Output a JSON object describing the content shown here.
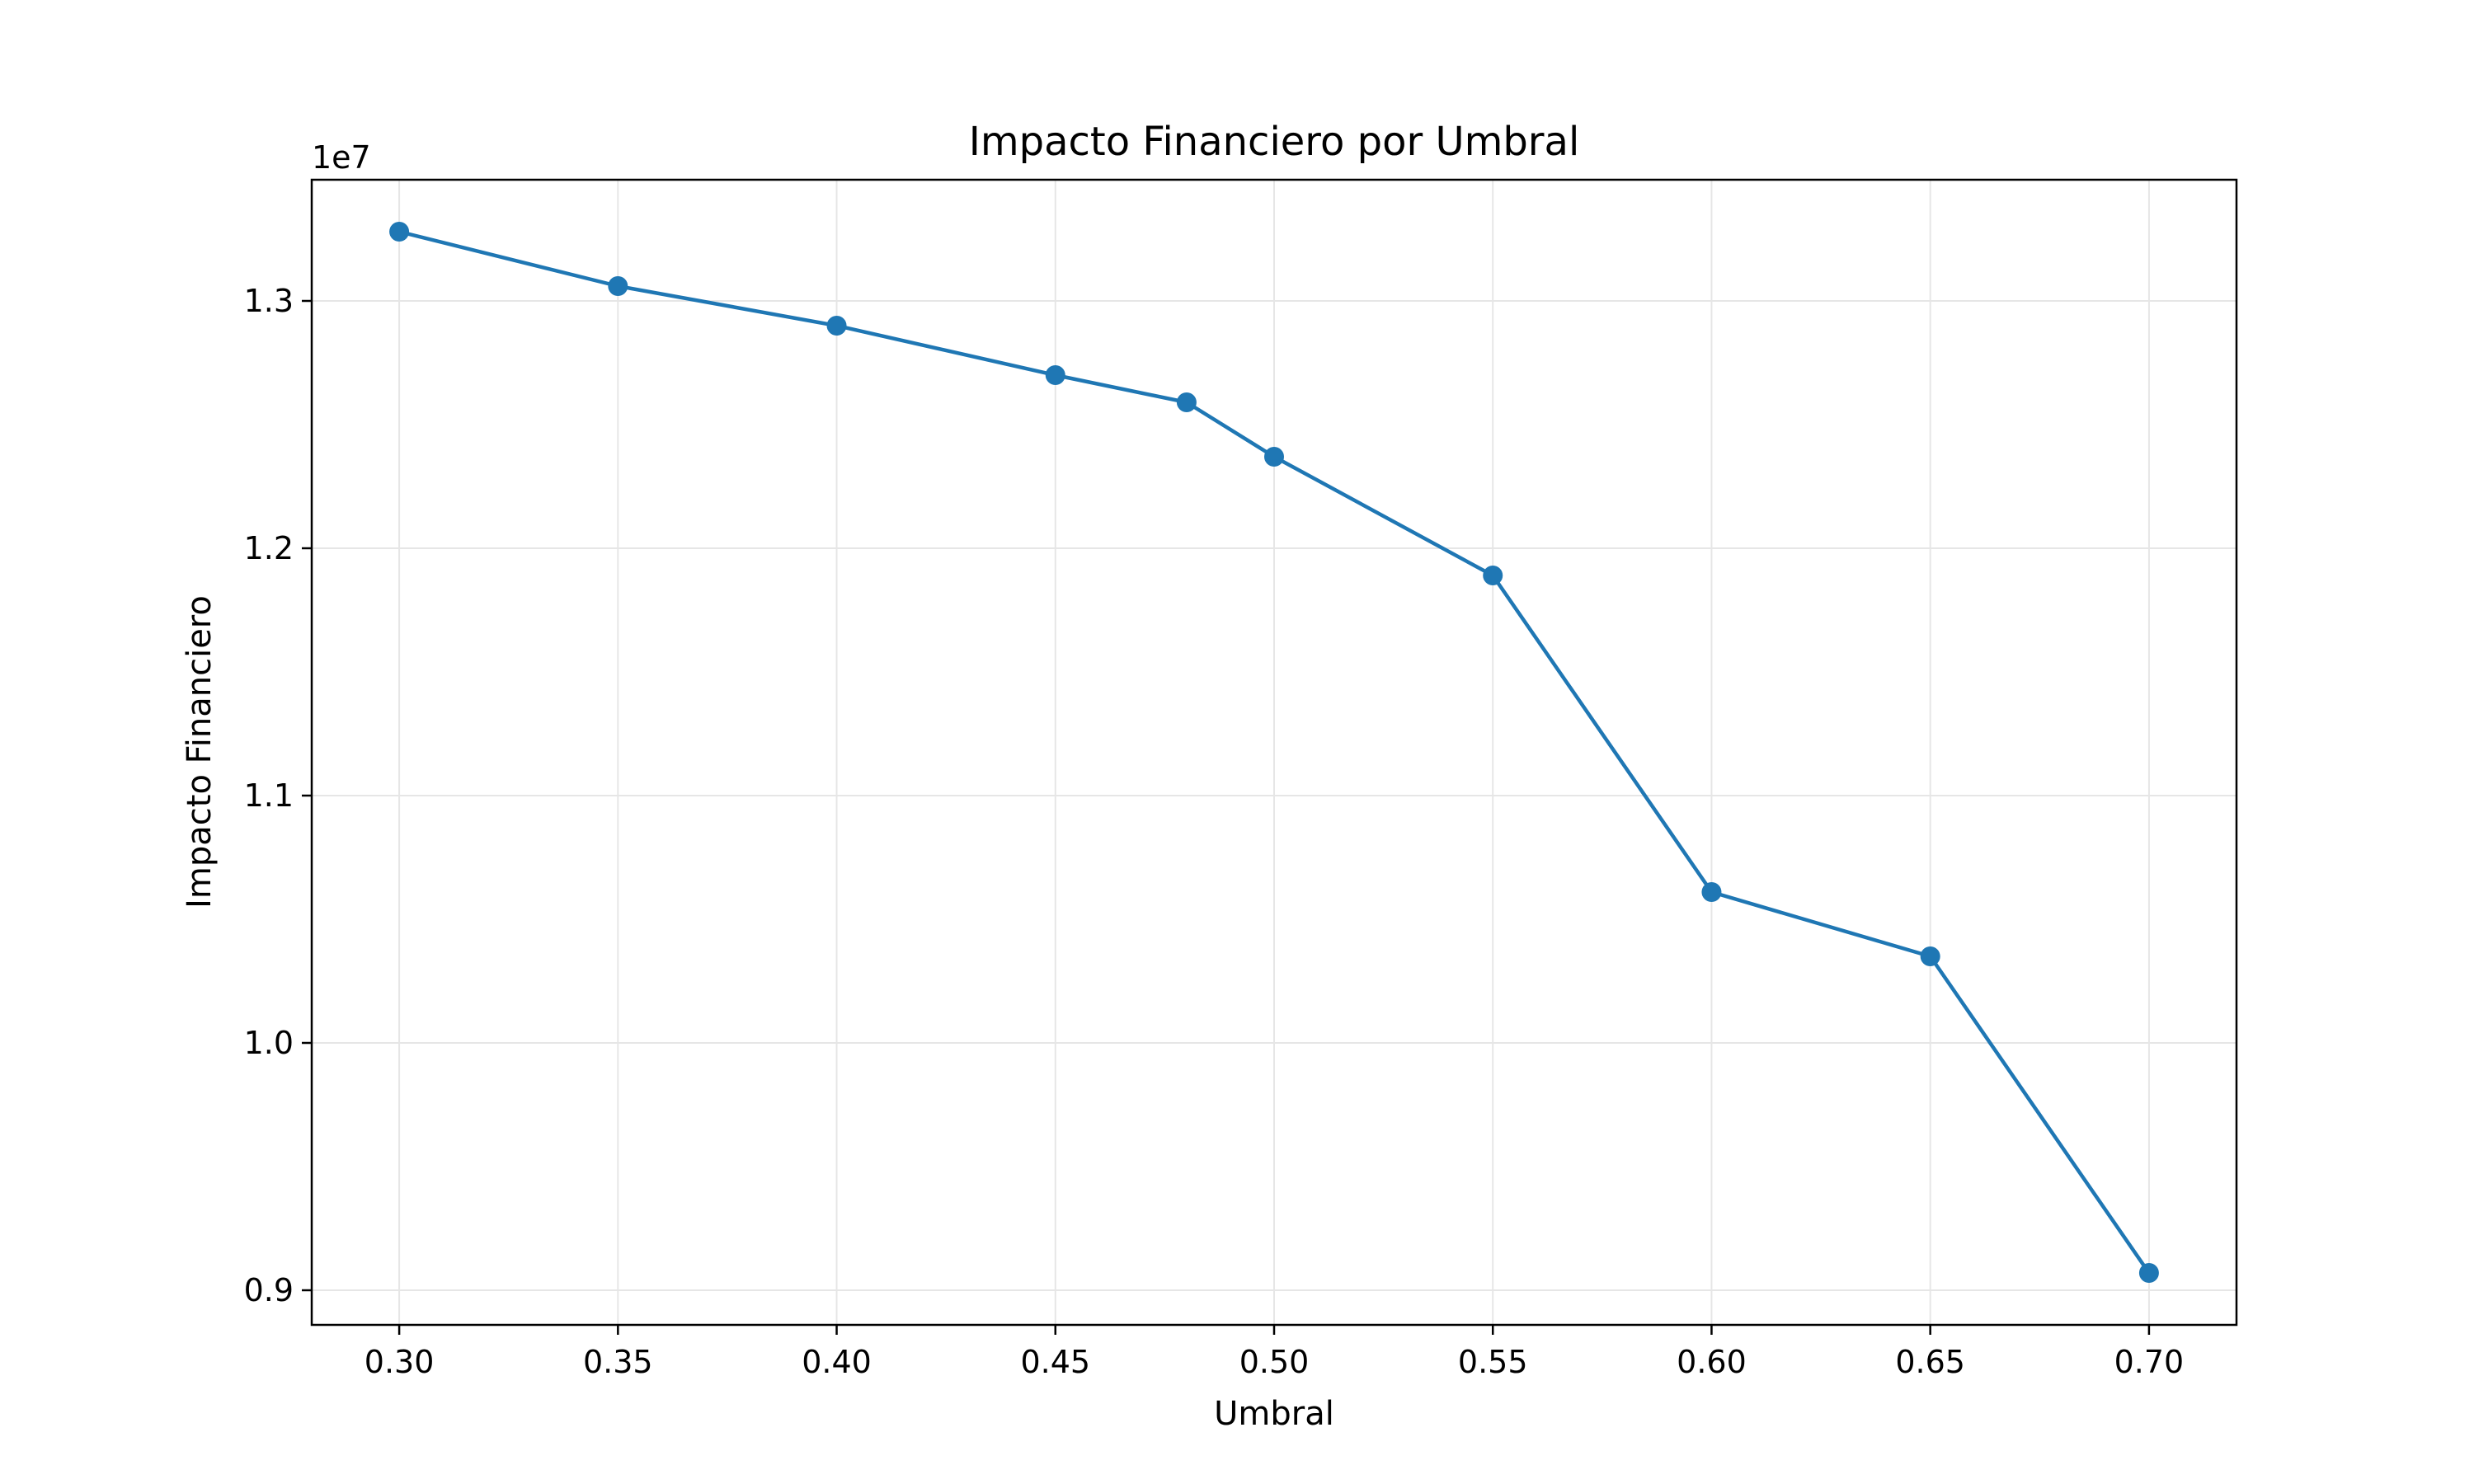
{
  "chart_data": {
    "type": "line",
    "title": "Impacto Financiero por Umbral",
    "xlabel": "Umbral",
    "ylabel": "Impacto Financiero",
    "y_offset_label": "1e7",
    "x": [
      0.3,
      0.35,
      0.4,
      0.45,
      0.48,
      0.5,
      0.55,
      0.6,
      0.65,
      0.7
    ],
    "series": [
      {
        "values": [
          13280000,
          13060000,
          12900000,
          12700000,
          12590000,
          12370000,
          11890000,
          10610000,
          10350000,
          9070000
        ],
        "color": "#1f77b4",
        "marker": "circle"
      }
    ],
    "xlim": [
      0.28,
      0.72
    ],
    "ylim": [
      8860000,
      13490000
    ],
    "xticks": [
      0.3,
      0.35,
      0.4,
      0.45,
      0.5,
      0.55,
      0.6,
      0.65,
      0.7
    ],
    "xtick_labels": [
      "0.30",
      "0.35",
      "0.40",
      "0.45",
      "0.50",
      "0.55",
      "0.60",
      "0.65",
      "0.70"
    ],
    "yticks": [
      9000000,
      10000000,
      11000000,
      12000000,
      13000000
    ],
    "ytick_labels": [
      "0.9",
      "1.0",
      "1.1",
      "1.2",
      "1.3"
    ],
    "grid": true,
    "grid_color": "#e6e6e6",
    "axes_color": "#000000"
  }
}
